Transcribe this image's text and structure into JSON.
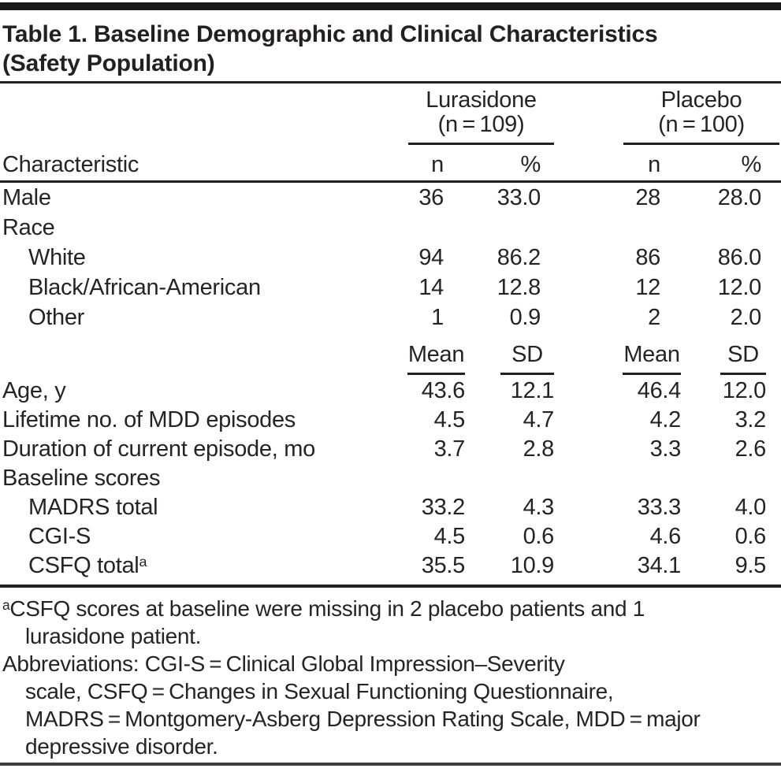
{
  "title": {
    "line1": "Table 1. Baseline Demographic and Clinical Characteristics",
    "line2": "(Safety Population)"
  },
  "header": {
    "characteristic_label": "Characteristic",
    "groups": [
      {
        "name": "Lurasidone",
        "n_label": "(n = 109)",
        "col1": "n",
        "col2": "%"
      },
      {
        "name": "Placebo",
        "n_label": "(n = 100)",
        "col1": "n",
        "col2": "%"
      }
    ],
    "mean_sd": [
      "Mean",
      "SD",
      "Mean",
      "SD"
    ]
  },
  "rows_counts": [
    {
      "label": "Male",
      "indent": false,
      "values": [
        "36",
        "33.0",
        "28",
        "28.0"
      ]
    },
    {
      "label": "Race",
      "indent": false,
      "values": [
        "",
        "",
        "",
        ""
      ]
    },
    {
      "label": "White",
      "indent": true,
      "values": [
        "94",
        "86.2",
        "86",
        "86.0"
      ]
    },
    {
      "label": "Black/African-American",
      "indent": true,
      "values": [
        "14",
        "12.8",
        "12",
        "12.0"
      ]
    },
    {
      "label": "Other",
      "indent": true,
      "values": [
        "1",
        "0.9",
        "2",
        "2.0"
      ]
    }
  ],
  "rows_means": [
    {
      "label": "Age, y",
      "indent": false,
      "values": [
        "43.6",
        "12.1",
        "46.4",
        "12.0"
      ]
    },
    {
      "label": "Lifetime no. of MDD episodes",
      "indent": false,
      "values": [
        "4.5",
        "4.7",
        "4.2",
        "3.2"
      ]
    },
    {
      "label": "Duration of current episode, mo",
      "indent": false,
      "values": [
        "3.7",
        "2.8",
        "3.3",
        "2.6"
      ]
    },
    {
      "label": "Baseline scores",
      "indent": false,
      "values": [
        "",
        "",
        "",
        ""
      ]
    },
    {
      "label": "MADRS total",
      "indent": true,
      "values": [
        "33.2",
        "4.3",
        "33.3",
        "4.0"
      ]
    },
    {
      "label": "CGI-S",
      "indent": true,
      "values": [
        "4.5",
        "0.6",
        "4.6",
        "0.6"
      ]
    },
    {
      "label": "CSFQ total",
      "label_sup": "a",
      "indent": true,
      "values": [
        "35.5",
        "10.9",
        "34.1",
        "9.5"
      ]
    }
  ],
  "footnotes": [
    {
      "sup": "a",
      "text": "CSFQ scores at baseline were missing in 2 placebo patients and 1",
      "indent": false
    },
    {
      "text": "lurasidone patient.",
      "indent": true
    },
    {
      "text": "Abbreviations: CGI-S = Clinical Global Impression–Severity",
      "indent": false
    },
    {
      "text": "scale, CSFQ = Changes in Sexual Functioning Questionnaire,",
      "indent": true
    },
    {
      "text": "MADRS = Montgomery-Asberg Depression Rating Scale, MDD = major",
      "indent": true
    },
    {
      "text": "depressive disorder.",
      "indent": true
    }
  ],
  "chart_data": {
    "type": "table",
    "title": "Table 1. Baseline Demographic and Clinical Characteristics (Safety Population)",
    "column_groups": [
      "Lurasidone (n = 109)",
      "Placebo (n = 100)"
    ],
    "sections": [
      {
        "columns": [
          "n",
          "%",
          "n",
          "%"
        ],
        "rows": [
          {
            "characteristic": "Male",
            "values": [
              36,
              33.0,
              28,
              28.0
            ]
          },
          {
            "characteristic": "Race / White",
            "values": [
              94,
              86.2,
              86,
              86.0
            ]
          },
          {
            "characteristic": "Race / Black/African-American",
            "values": [
              14,
              12.8,
              12,
              12.0
            ]
          },
          {
            "characteristic": "Race / Other",
            "values": [
              1,
              0.9,
              2,
              2.0
            ]
          }
        ]
      },
      {
        "columns": [
          "Mean",
          "SD",
          "Mean",
          "SD"
        ],
        "rows": [
          {
            "characteristic": "Age, y",
            "values": [
              43.6,
              12.1,
              46.4,
              12.0
            ]
          },
          {
            "characteristic": "Lifetime no. of MDD episodes",
            "values": [
              4.5,
              4.7,
              4.2,
              3.2
            ]
          },
          {
            "characteristic": "Duration of current episode, mo",
            "values": [
              3.7,
              2.8,
              3.3,
              2.6
            ]
          },
          {
            "characteristic": "Baseline scores / MADRS total",
            "values": [
              33.2,
              4.3,
              33.3,
              4.0
            ]
          },
          {
            "characteristic": "Baseline scores / CGI-S",
            "values": [
              4.5,
              0.6,
              4.6,
              0.6
            ]
          },
          {
            "characteristic": "Baseline scores / CSFQ total (a)",
            "values": [
              35.5,
              10.9,
              34.1,
              9.5
            ]
          }
        ]
      }
    ]
  }
}
